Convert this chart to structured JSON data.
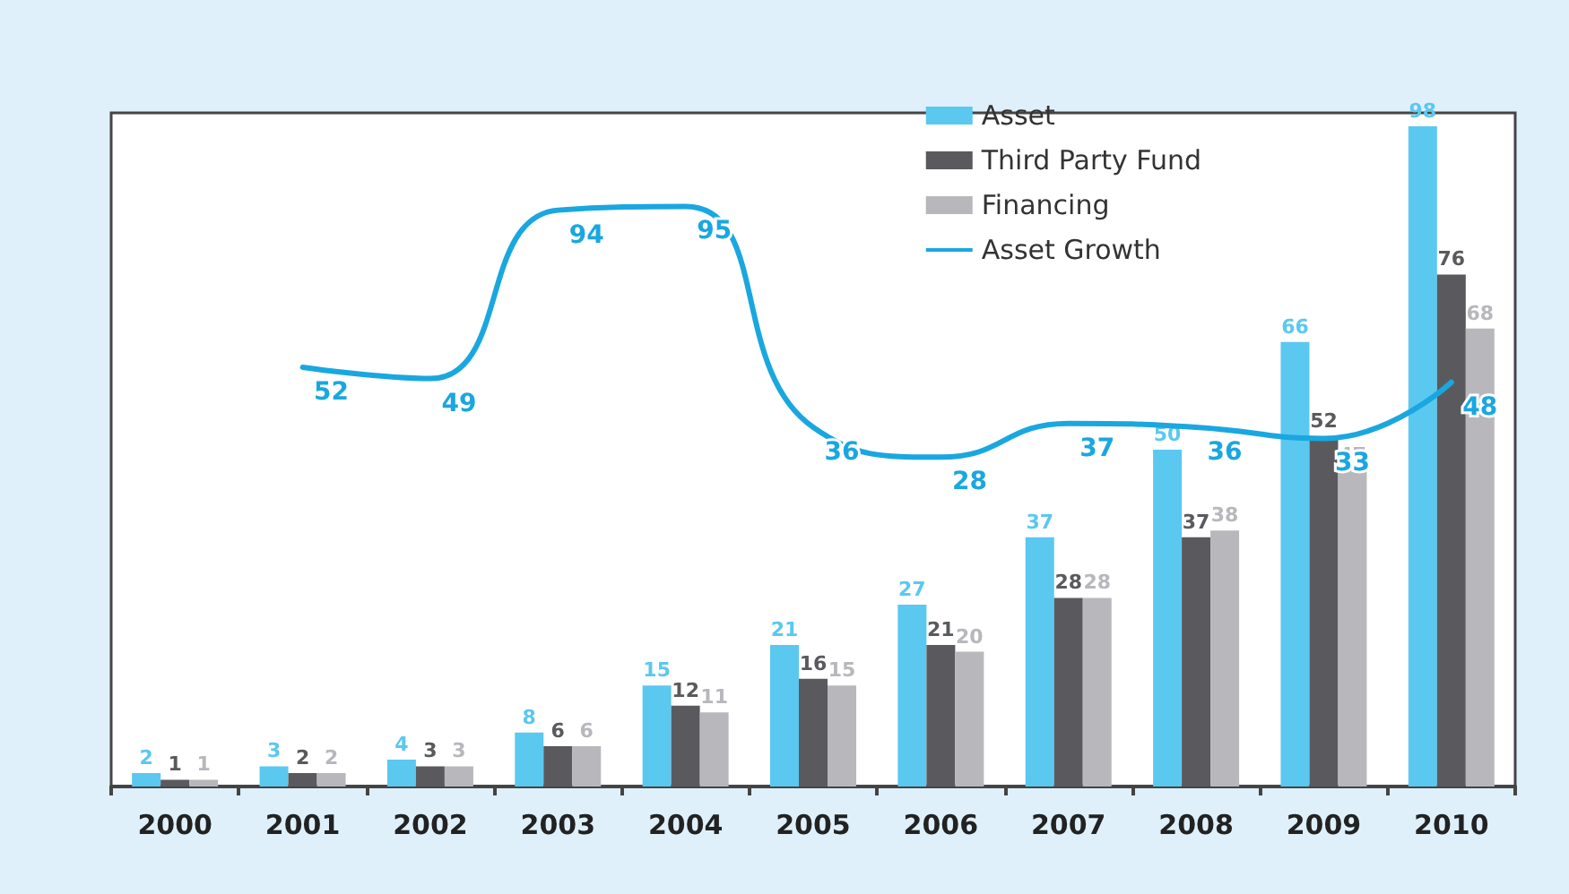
{
  "chart_data": {
    "type": "bar",
    "categories": [
      "2000",
      "2001",
      "2002",
      "2003",
      "2004",
      "2005",
      "2006",
      "2007",
      "2008",
      "2009",
      "2010"
    ],
    "series": [
      {
        "name": "Asset",
        "color": "#5bc8f0",
        "values": [
          2,
          3,
          4,
          8,
          15,
          21,
          27,
          37,
          50,
          66,
          98
        ]
      },
      {
        "name": "Third Party Fund",
        "color": "#5a5a5e",
        "values": [
          1,
          2,
          3,
          6,
          12,
          16,
          21,
          28,
          37,
          52,
          76
        ]
      },
      {
        "name": "Financing",
        "color": "#b8b8bc",
        "values": [
          1,
          2,
          3,
          6,
          11,
          15,
          20,
          28,
          38,
          47,
          68
        ]
      },
      {
        "name": "Asset Growth",
        "type": "line",
        "axis": "y2",
        "color": "#1aa7e0",
        "values": [
          null,
          52,
          49,
          94,
          95,
          36,
          28,
          37,
          36,
          33,
          48
        ]
      }
    ],
    "data_labels": true,
    "legend": "top right",
    "grid": false,
    "marker": "none",
    "line_style": "solid"
  }
}
